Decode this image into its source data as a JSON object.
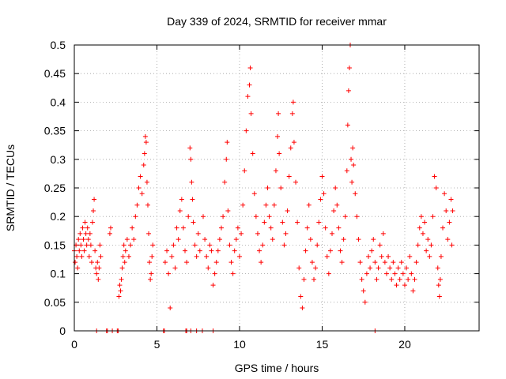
{
  "chart_data": {
    "type": "scatter",
    "title": "Day 339 of 2024, SRMTID for receiver mmar",
    "xlabel": "GPS time / hours",
    "ylabel": "SRMTID / TECUs",
    "xlim": [
      0,
      24.5
    ],
    "ylim": [
      0,
      0.5
    ],
    "x_ticks": [
      0,
      5,
      10,
      15,
      20
    ],
    "y_ticks": [
      0,
      0.05,
      0.1,
      0.15,
      0.2,
      0.25,
      0.3,
      0.35,
      0.4,
      0.45,
      0.5
    ],
    "x_tick_labels": [
      "0",
      "5",
      "10",
      "15",
      "20"
    ],
    "y_tick_labels": [
      "0",
      "0.05",
      "0.1",
      "0.15",
      "0.2",
      "0.25",
      "0.3",
      "0.35",
      "0.4",
      "0.45",
      "0.5"
    ],
    "grid": true,
    "marker": "plus",
    "color": "#ff0000",
    "series": [
      {
        "points": [
          [
            0.0,
            0.14
          ],
          [
            0.05,
            0.12
          ],
          [
            0.1,
            0.15
          ],
          [
            0.15,
            0.13
          ],
          [
            0.2,
            0.11
          ],
          [
            0.25,
            0.16
          ],
          [
            0.3,
            0.14
          ],
          [
            0.35,
            0.17
          ],
          [
            0.4,
            0.15
          ],
          [
            0.45,
            0.13
          ],
          [
            0.5,
            0.18
          ],
          [
            0.55,
            0.16
          ],
          [
            0.6,
            0.14
          ],
          [
            0.65,
            0.19
          ],
          [
            0.7,
            0.17
          ],
          [
            0.75,
            0.15
          ],
          [
            0.8,
            0.18
          ],
          [
            0.85,
            0.16
          ],
          [
            0.9,
            0.13
          ],
          [
            0.95,
            0.17
          ],
          [
            1.0,
            0.15
          ],
          [
            1.05,
            0.12
          ],
          [
            1.1,
            0.19
          ],
          [
            1.15,
            0.21
          ],
          [
            1.2,
            0.23
          ],
          [
            1.25,
            0.14
          ],
          [
            1.3,
            0.11
          ],
          [
            1.35,
            0.1
          ],
          [
            1.4,
            0.12
          ],
          [
            1.45,
            0.09
          ],
          [
            1.5,
            0.11
          ],
          [
            1.55,
            0.15
          ],
          [
            1.6,
            0.13
          ],
          [
            2.15,
            0.17
          ],
          [
            2.2,
            0.18
          ],
          [
            2.7,
            0.06
          ],
          [
            2.75,
            0.08
          ],
          [
            2.8,
            0.07
          ],
          [
            2.85,
            0.09
          ],
          [
            2.9,
            0.11
          ],
          [
            2.95,
            0.13
          ],
          [
            3.0,
            0.15
          ],
          [
            3.05,
            0.12
          ],
          [
            3.1,
            0.14
          ],
          [
            3.2,
            0.16
          ],
          [
            3.3,
            0.13
          ],
          [
            3.4,
            0.15
          ],
          [
            3.5,
            0.18
          ],
          [
            3.6,
            0.16
          ],
          [
            3.7,
            0.2
          ],
          [
            3.8,
            0.22
          ],
          [
            3.9,
            0.25
          ],
          [
            4.0,
            0.27
          ],
          [
            4.1,
            0.24
          ],
          [
            4.2,
            0.29
          ],
          [
            4.25,
            0.31
          ],
          [
            4.3,
            0.34
          ],
          [
            4.35,
            0.33
          ],
          [
            4.4,
            0.26
          ],
          [
            4.45,
            0.22
          ],
          [
            4.5,
            0.17
          ],
          [
            4.55,
            0.12
          ],
          [
            4.6,
            0.09
          ],
          [
            4.65,
            0.1
          ],
          [
            4.7,
            0.13
          ],
          [
            4.75,
            0.15
          ],
          [
            5.5,
            0.12
          ],
          [
            5.6,
            0.14
          ],
          [
            5.7,
            0.1
          ],
          [
            5.8,
            0.04
          ],
          [
            5.9,
            0.13
          ],
          [
            6.0,
            0.15
          ],
          [
            6.1,
            0.11
          ],
          [
            6.2,
            0.18
          ],
          [
            6.3,
            0.16
          ],
          [
            6.4,
            0.21
          ],
          [
            6.5,
            0.23
          ],
          [
            6.6,
            0.18
          ],
          [
            6.7,
            0.14
          ],
          [
            6.8,
            0.12
          ],
          [
            6.9,
            0.2
          ],
          [
            7.0,
            0.32
          ],
          [
            7.05,
            0.3
          ],
          [
            7.1,
            0.26
          ],
          [
            7.15,
            0.23
          ],
          [
            7.2,
            0.19
          ],
          [
            7.3,
            0.15
          ],
          [
            7.4,
            0.13
          ],
          [
            7.5,
            0.17
          ],
          [
            7.6,
            0.14
          ],
          [
            7.8,
            0.2
          ],
          [
            7.9,
            0.16
          ],
          [
            8.0,
            0.13
          ],
          [
            8.1,
            0.11
          ],
          [
            8.2,
            0.15
          ],
          [
            8.3,
            0.14
          ],
          [
            8.4,
            0.08
          ],
          [
            8.5,
            0.1
          ],
          [
            8.6,
            0.12
          ],
          [
            8.7,
            0.14
          ],
          [
            8.8,
            0.16
          ],
          [
            8.9,
            0.18
          ],
          [
            9.0,
            0.2
          ],
          [
            9.1,
            0.26
          ],
          [
            9.2,
            0.3
          ],
          [
            9.25,
            0.33
          ],
          [
            9.3,
            0.21
          ],
          [
            9.4,
            0.15
          ],
          [
            9.5,
            0.12
          ],
          [
            9.6,
            0.1
          ],
          [
            9.7,
            0.14
          ],
          [
            9.8,
            0.16
          ],
          [
            9.9,
            0.18
          ],
          [
            10.0,
            0.13
          ],
          [
            10.1,
            0.17
          ],
          [
            10.2,
            0.22
          ],
          [
            10.3,
            0.28
          ],
          [
            10.4,
            0.35
          ],
          [
            10.5,
            0.41
          ],
          [
            10.6,
            0.43
          ],
          [
            10.65,
            0.46
          ],
          [
            10.7,
            0.38
          ],
          [
            10.8,
            0.31
          ],
          [
            10.9,
            0.24
          ],
          [
            11.0,
            0.2
          ],
          [
            11.1,
            0.17
          ],
          [
            11.2,
            0.14
          ],
          [
            11.3,
            0.12
          ],
          [
            11.4,
            0.15
          ],
          [
            11.5,
            0.19
          ],
          [
            11.6,
            0.22
          ],
          [
            11.7,
            0.25
          ],
          [
            11.8,
            0.2
          ],
          [
            11.9,
            0.18
          ],
          [
            12.0,
            0.16
          ],
          [
            12.1,
            0.22
          ],
          [
            12.2,
            0.28
          ],
          [
            12.3,
            0.34
          ],
          [
            12.35,
            0.38
          ],
          [
            12.4,
            0.31
          ],
          [
            12.5,
            0.25
          ],
          [
            12.6,
            0.19
          ],
          [
            12.7,
            0.15
          ],
          [
            12.8,
            0.17
          ],
          [
            12.9,
            0.21
          ],
          [
            13.0,
            0.27
          ],
          [
            13.1,
            0.32
          ],
          [
            13.2,
            0.38
          ],
          [
            13.25,
            0.4
          ],
          [
            13.3,
            0.33
          ],
          [
            13.4,
            0.26
          ],
          [
            13.5,
            0.19
          ],
          [
            13.6,
            0.11
          ],
          [
            13.7,
            0.06
          ],
          [
            13.8,
            0.04
          ],
          [
            13.9,
            0.09
          ],
          [
            14.0,
            0.14
          ],
          [
            14.1,
            0.18
          ],
          [
            14.2,
            0.22
          ],
          [
            14.3,
            0.16
          ],
          [
            14.4,
            0.12
          ],
          [
            14.5,
            0.09
          ],
          [
            14.6,
            0.11
          ],
          [
            14.7,
            0.15
          ],
          [
            14.8,
            0.19
          ],
          [
            14.9,
            0.23
          ],
          [
            15.0,
            0.27
          ],
          [
            15.1,
            0.24
          ],
          [
            15.2,
            0.18
          ],
          [
            15.3,
            0.13
          ],
          [
            15.4,
            0.1
          ],
          [
            15.5,
            0.14
          ],
          [
            15.6,
            0.17
          ],
          [
            15.7,
            0.21
          ],
          [
            15.8,
            0.25
          ],
          [
            15.9,
            0.22
          ],
          [
            16.0,
            0.18
          ],
          [
            16.1,
            0.14
          ],
          [
            16.2,
            0.12
          ],
          [
            16.3,
            0.16
          ],
          [
            16.4,
            0.2
          ],
          [
            16.5,
            0.28
          ],
          [
            16.55,
            0.36
          ],
          [
            16.6,
            0.42
          ],
          [
            16.65,
            0.46
          ],
          [
            16.7,
            0.5
          ],
          [
            16.75,
            0.3
          ],
          [
            16.8,
            0.26
          ],
          [
            16.85,
            0.32
          ],
          [
            16.9,
            0.29
          ],
          [
            17.0,
            0.24
          ],
          [
            17.1,
            0.2
          ],
          [
            17.2,
            0.16
          ],
          [
            17.3,
            0.12
          ],
          [
            17.4,
            0.09
          ],
          [
            17.5,
            0.07
          ],
          [
            17.6,
            0.05
          ],
          [
            17.7,
            0.1
          ],
          [
            17.8,
            0.13
          ],
          [
            17.9,
            0.11
          ],
          [
            18.0,
            0.14
          ],
          [
            18.1,
            0.16
          ],
          [
            18.2,
            0.12
          ],
          [
            18.3,
            0.09
          ],
          [
            18.4,
            0.11
          ],
          [
            18.5,
            0.15
          ],
          [
            18.6,
            0.13
          ],
          [
            18.7,
            0.17
          ],
          [
            18.8,
            0.12
          ],
          [
            18.9,
            0.1
          ],
          [
            19.0,
            0.13
          ],
          [
            19.1,
            0.11
          ],
          [
            19.2,
            0.09
          ],
          [
            19.3,
            0.12
          ],
          [
            19.4,
            0.1
          ],
          [
            19.5,
            0.08
          ],
          [
            19.6,
            0.11
          ],
          [
            19.7,
            0.09
          ],
          [
            19.8,
            0.12
          ],
          [
            19.9,
            0.1
          ],
          [
            20.0,
            0.08
          ],
          [
            20.1,
            0.11
          ],
          [
            20.2,
            0.09
          ],
          [
            20.3,
            0.13
          ],
          [
            20.4,
            0.1
          ],
          [
            20.5,
            0.07
          ],
          [
            20.6,
            0.09
          ],
          [
            20.7,
            0.12
          ],
          [
            20.8,
            0.15
          ],
          [
            20.9,
            0.18
          ],
          [
            21.0,
            0.2
          ],
          [
            21.1,
            0.17
          ],
          [
            21.2,
            0.19
          ],
          [
            21.3,
            0.14
          ],
          [
            21.4,
            0.16
          ],
          [
            21.5,
            0.13
          ],
          [
            21.6,
            0.15
          ],
          [
            21.7,
            0.2
          ],
          [
            21.8,
            0.27
          ],
          [
            21.9,
            0.25
          ],
          [
            22.0,
            0.11
          ],
          [
            22.05,
            0.08
          ],
          [
            22.1,
            0.06
          ],
          [
            22.15,
            0.09
          ],
          [
            22.2,
            0.13
          ],
          [
            22.3,
            0.18
          ],
          [
            22.4,
            0.24
          ],
          [
            22.5,
            0.21
          ],
          [
            22.6,
            0.16
          ],
          [
            22.7,
            0.19
          ],
          [
            22.8,
            0.23
          ],
          [
            22.85,
            0.15
          ],
          [
            22.9,
            0.21
          ],
          [
            1.35,
            0
          ],
          [
            1.95,
            0
          ],
          [
            2.0,
            0
          ],
          [
            2.3,
            0
          ],
          [
            2.6,
            0
          ],
          [
            2.65,
            0
          ],
          [
            5.4,
            0
          ],
          [
            5.45,
            0
          ],
          [
            6.75,
            0
          ],
          [
            6.8,
            0
          ],
          [
            7.05,
            0
          ],
          [
            7.4,
            0
          ],
          [
            7.75,
            0
          ],
          [
            8.4,
            0
          ],
          [
            18.2,
            0
          ]
        ]
      }
    ]
  }
}
